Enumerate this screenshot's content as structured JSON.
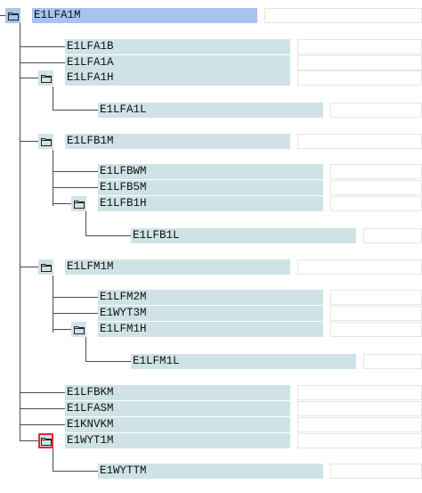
{
  "tree": {
    "root": {
      "label": "E1LFA1M",
      "selected": true,
      "expanded": true
    },
    "rows": [
      {
        "label": "E1LFA1B",
        "level": 1,
        "folder": false
      },
      {
        "label": "E1LFA1A",
        "level": 1,
        "folder": false
      },
      {
        "label": "E1LFA1H",
        "level": 1,
        "folder": true
      },
      {
        "label": "E1LFA1L",
        "level": 2,
        "folder": false
      },
      {
        "label": "E1LFB1M",
        "level": 1,
        "folder": true
      },
      {
        "label": "E1LFBWM",
        "level": 2,
        "folder": false
      },
      {
        "label": "E1LFB5M",
        "level": 2,
        "folder": false
      },
      {
        "label": "E1LFB1H",
        "level": 2,
        "folder": true
      },
      {
        "label": "E1LFB1L",
        "level": 3,
        "folder": false
      },
      {
        "label": "E1LFM1M",
        "level": 1,
        "folder": true
      },
      {
        "label": "E1LFM2M",
        "level": 2,
        "folder": false
      },
      {
        "label": "E1WYT3M",
        "level": 2,
        "folder": false
      },
      {
        "label": "E1LFM1H",
        "level": 2,
        "folder": true
      },
      {
        "label": "E1LFM1L",
        "level": 3,
        "folder": false
      },
      {
        "label": "E1LFBKM",
        "level": 1,
        "folder": false
      },
      {
        "label": "E1LFASM",
        "level": 1,
        "folder": false
      },
      {
        "label": "E1KNVKM",
        "level": 1,
        "folder": false
      },
      {
        "label": "E1WYT1M",
        "level": 1,
        "folder": true,
        "focused": true
      },
      {
        "label": "E1WYTTM",
        "level": 2,
        "folder": false
      }
    ],
    "icons": {
      "folder": "folder-icon"
    },
    "colors": {
      "node_background": "#cfe3e6",
      "selected_background": "#a8c4ee",
      "focus_border": "#e02a2a",
      "connector": "#4a4a4a"
    }
  }
}
